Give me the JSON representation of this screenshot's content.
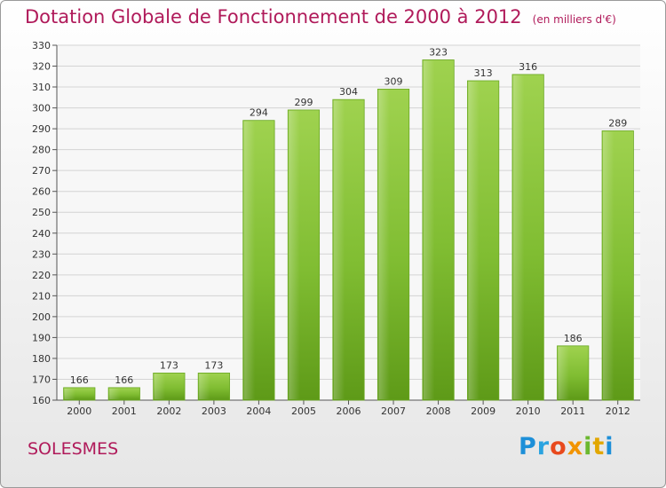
{
  "title": "Dotation Globale de Fonctionnement de 2000 à 2012",
  "subtitle": "(en milliers d'€)",
  "place": "SOLESMES",
  "logo": "Proxiti",
  "colors": {
    "title": "#b01a5a",
    "bar": "#8ac43a",
    "bar_dark": "#5e9a18"
  },
  "chart_data": {
    "type": "bar",
    "title": "Dotation Globale de Fonctionnement de 2000 à 2012",
    "subtitle": "(en milliers d'€)",
    "categories": [
      "2000",
      "2001",
      "2002",
      "2003",
      "2004",
      "2005",
      "2006",
      "2007",
      "2008",
      "2009",
      "2010",
      "2011",
      "2012"
    ],
    "values": [
      166,
      166,
      173,
      173,
      294,
      299,
      304,
      309,
      323,
      313,
      316,
      186,
      289
    ],
    "ylim": [
      160,
      330
    ],
    "yticks": [
      160,
      170,
      180,
      190,
      200,
      210,
      220,
      230,
      240,
      250,
      260,
      270,
      280,
      290,
      300,
      310,
      320,
      330
    ],
    "grid": true
  }
}
